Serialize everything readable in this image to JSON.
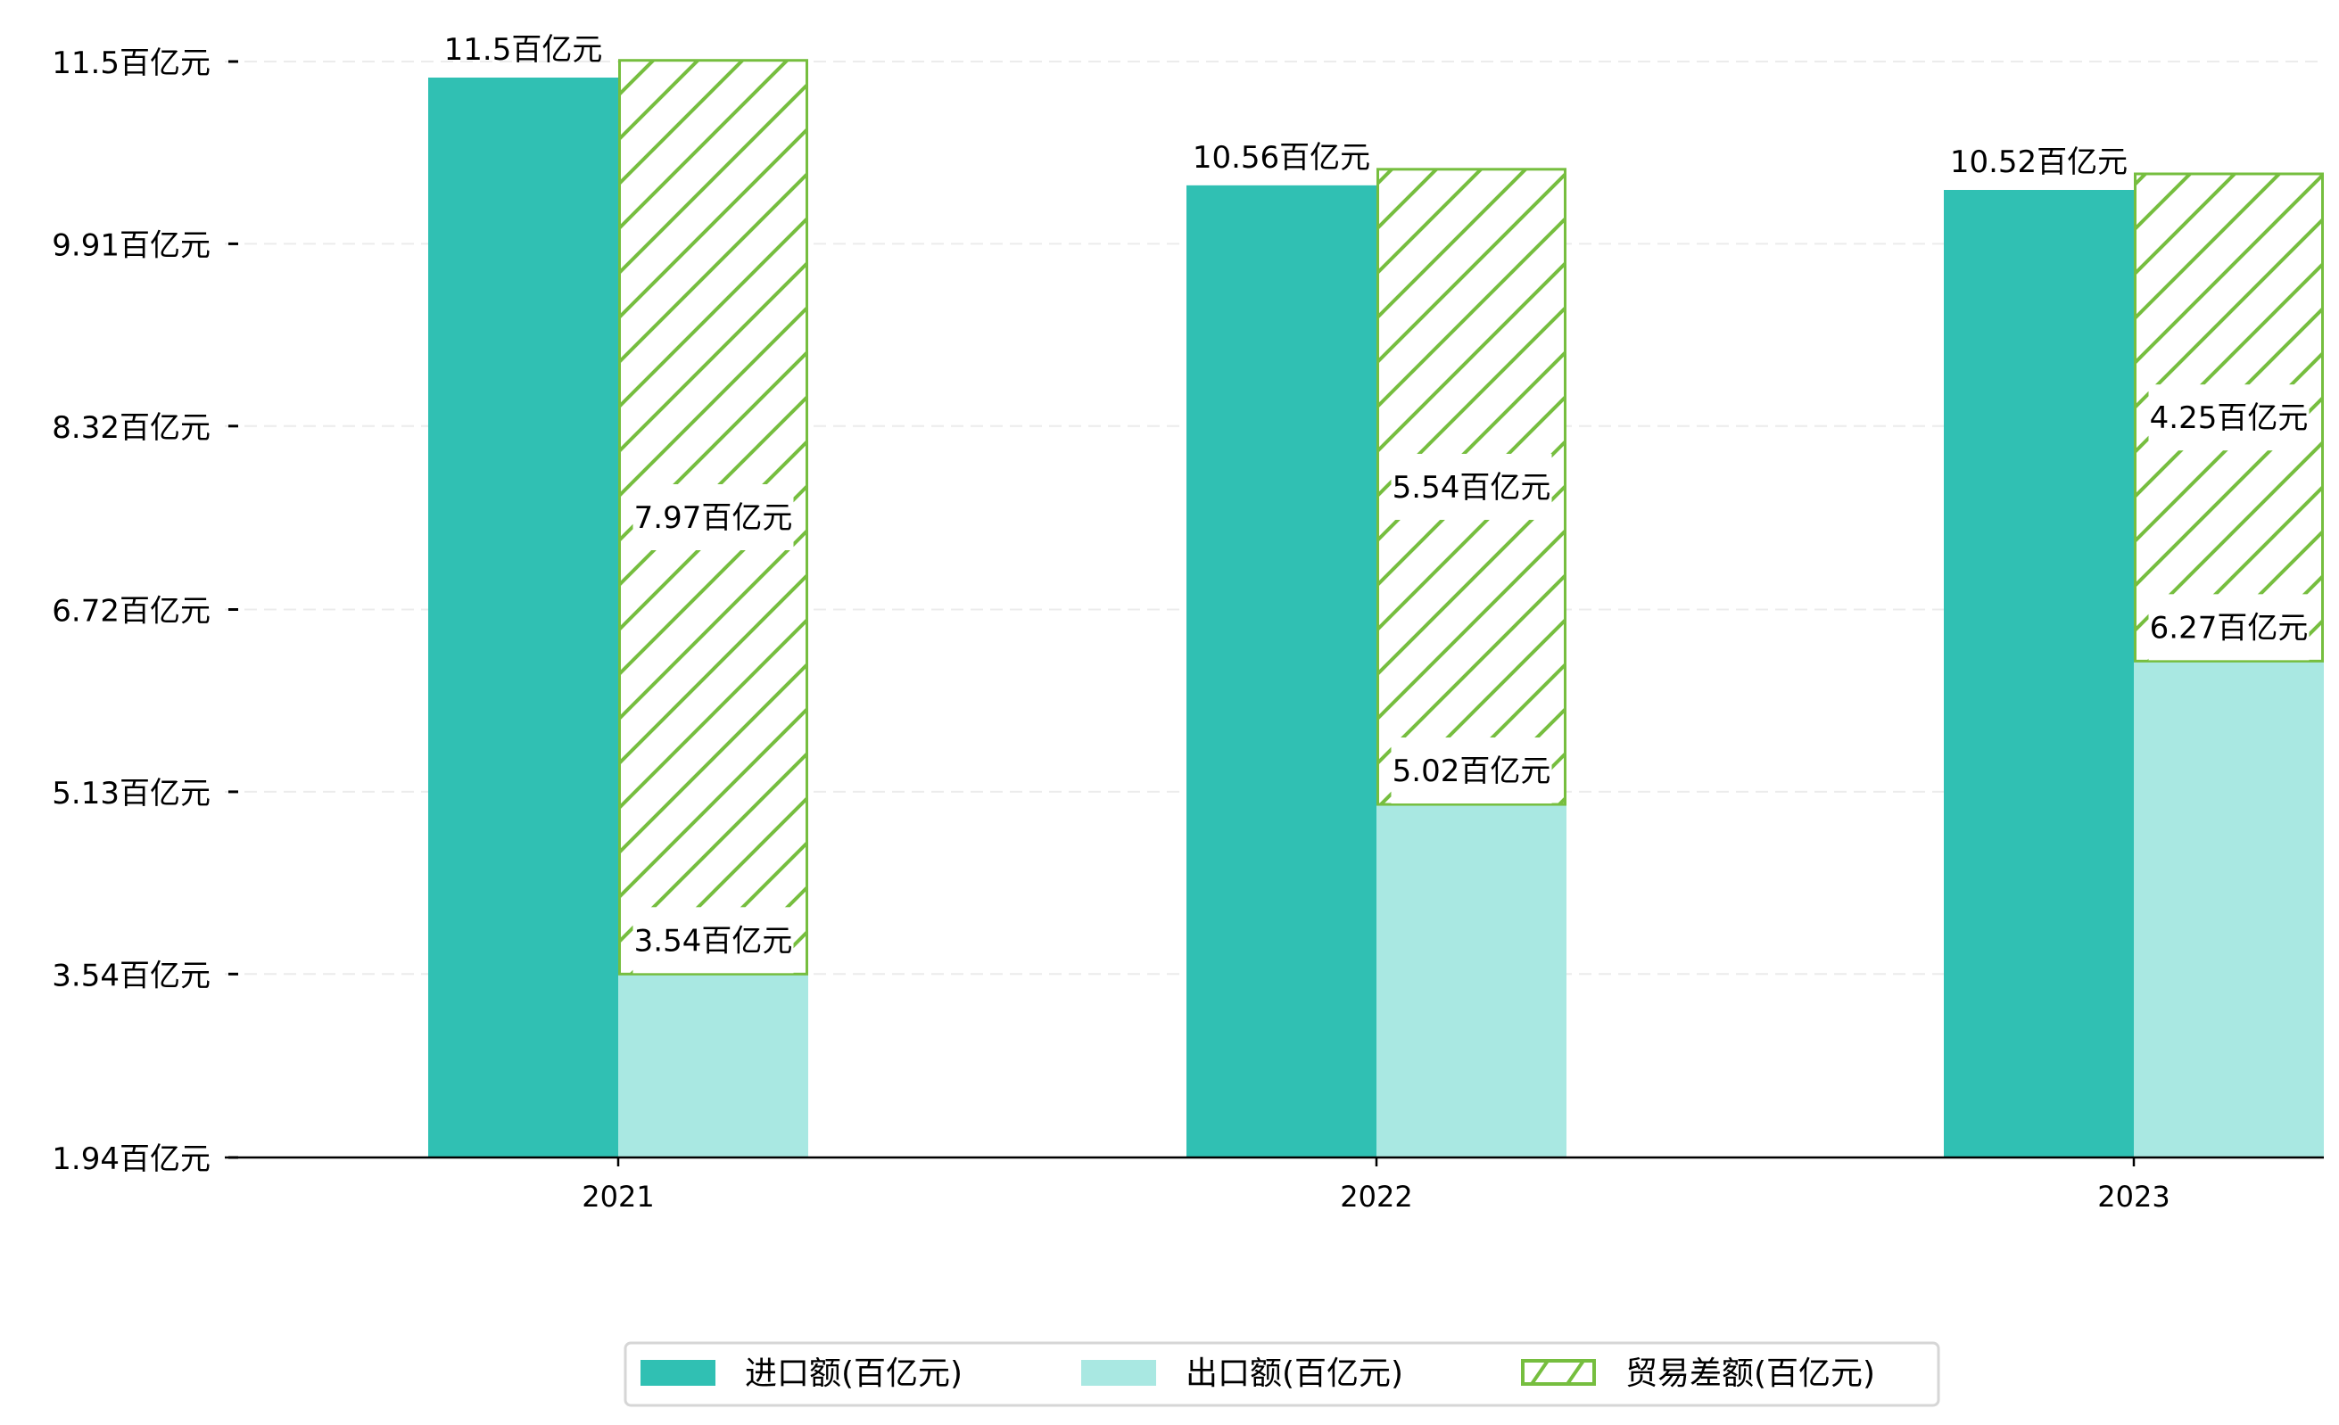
{
  "chart_data": {
    "type": "bar",
    "stacked_series": [
      "出口额(百亿元)",
      "贸易差额(百亿元)"
    ],
    "categories": [
      "2021",
      "2022",
      "2023"
    ],
    "series": [
      {
        "name": "进口额(百亿元)",
        "values": [
          11.5,
          10.56,
          10.52
        ],
        "labels": [
          "11.5百亿元",
          "10.56百亿元",
          "10.52百亿元"
        ],
        "color": "#30C0B3",
        "style": "solid"
      },
      {
        "name": "出口额(百亿元)",
        "values": [
          3.54,
          5.02,
          6.27
        ],
        "labels": [
          "3.54百亿元",
          "5.02百亿元",
          "6.27百亿元"
        ],
        "color": "#A9E8E2",
        "style": "solid"
      },
      {
        "name": "贸易差额(百亿元)",
        "values": [
          7.97,
          5.54,
          4.25
        ],
        "labels": [
          "7.97百亿元",
          "5.54百亿元",
          "4.25百亿元"
        ],
        "color": "#76BE3F",
        "style": "hatch"
      }
    ],
    "yticks": [
      1.94,
      3.54,
      5.13,
      6.72,
      8.32,
      9.91,
      11.5
    ],
    "ytick_labels": [
      "1.94百亿元",
      "3.54百亿元",
      "5.13百亿元",
      "6.72百亿元",
      "8.32百亿元",
      "9.91百亿元",
      "11.5百亿元"
    ],
    "ylim": [
      1.94,
      11.5
    ],
    "title": "",
    "xlabel": "",
    "ylabel": "",
    "grid": "horizontal dashed",
    "legend_placement": "bottom-center"
  }
}
